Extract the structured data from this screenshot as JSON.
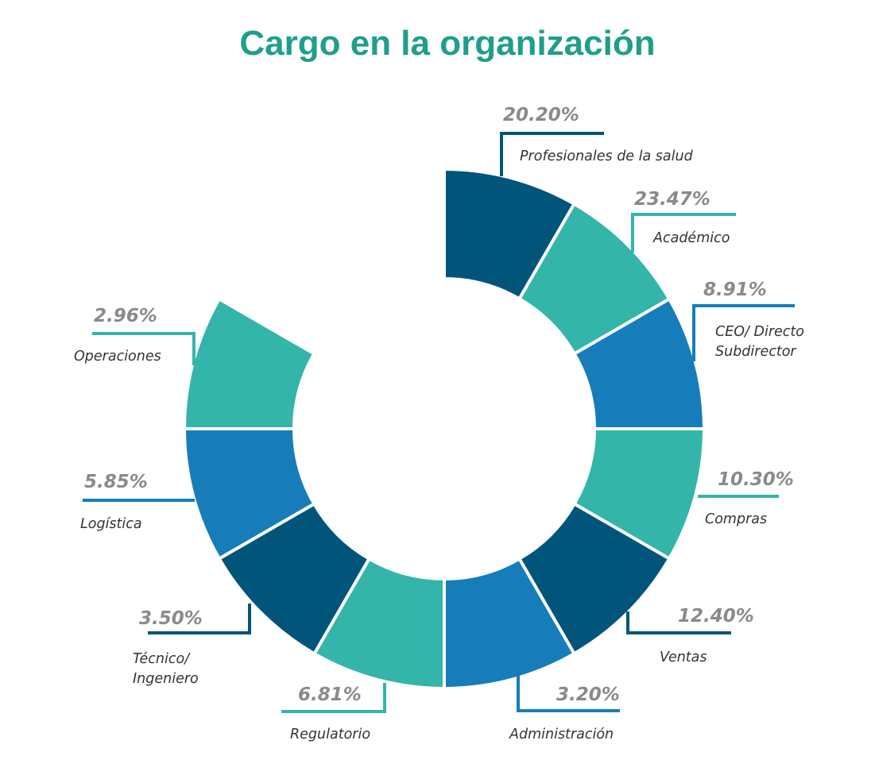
{
  "chart_data": {
    "type": "pie",
    "title": "Cargo en la organización",
    "categories": [
      "Profesionales de la salud",
      "Académico",
      "CEO/ Directo Subdirector",
      "Compras",
      "Ventas",
      "Administración",
      "Regulatorio",
      "Técnico/ Ingeniero",
      "Logística",
      "Operaciones"
    ],
    "label_lines": [
      [
        "Profesionales de la salud"
      ],
      [
        "Académico"
      ],
      [
        "CEO/ Directo",
        "Subdirector"
      ],
      [
        "Compras"
      ],
      [
        "Ventas"
      ],
      [
        "Administración"
      ],
      [
        "Regulatorio"
      ],
      [
        "Técnico/",
        "Ingeniero"
      ],
      [
        "Logística"
      ],
      [
        "Operaciones"
      ]
    ],
    "values": [
      20.2,
      23.47,
      8.91,
      10.3,
      12.4,
      3.2,
      6.81,
      3.5,
      5.85,
      2.96
    ],
    "value_labels": [
      "20.20%",
      "23.47%",
      "8.91%",
      "10.30%",
      "12.40%",
      "3.20%",
      "6.81%",
      "3.50%",
      "5.85%",
      "2.96%"
    ],
    "colors": [
      "#02557a",
      "#33b5aa",
      "#167dba",
      "#33b5aa",
      "#02557a",
      "#167dba",
      "#33b5aa",
      "#02557a",
      "#167dba",
      "#33b5aa"
    ],
    "style": "donut, equal-size segments",
    "legend": "none"
  }
}
